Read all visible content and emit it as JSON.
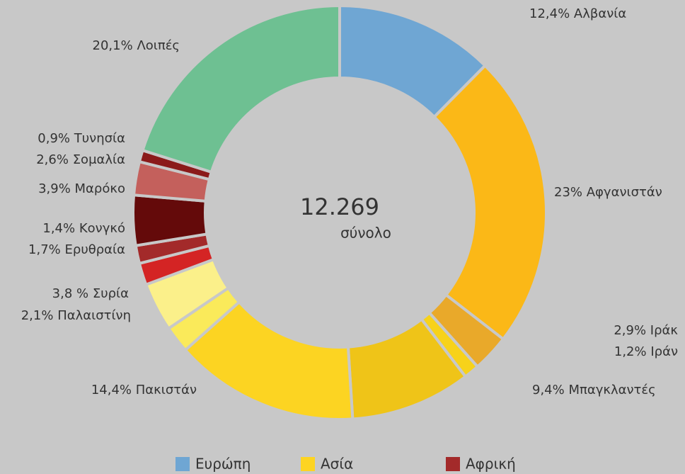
{
  "chart_data": {
    "type": "donut",
    "center_value": "12.269",
    "center_label": "σύνολο",
    "categories": [
      "Αλβανία",
      "Αφγανιστάν",
      "Ιράκ",
      "Ιράν",
      "Μπαγκλαντές",
      "Πακιστάν",
      "Παλαιστίνη",
      "Συρία",
      "Ερυθραία",
      "Κονγκό",
      "Μαρόκο",
      "Σομαλία",
      "Τυνησία",
      "Λοιπές"
    ],
    "values": [
      12.4,
      23,
      2.9,
      1.2,
      9.4,
      14.4,
      2.1,
      3.8,
      1.7,
      1.4,
      3.9,
      2.6,
      0.9,
      20.1
    ],
    "value_labels": [
      "12,4%",
      "23% ",
      "2,9%",
      "1,2%",
      "9,4%",
      "14,4%",
      "2,1%",
      "3,8 %",
      "1,7%",
      "1,4%",
      "3,9%",
      "2,6%",
      "0,9%",
      "20,1%"
    ],
    "colors": [
      "#6fa6d3",
      "#fbb817",
      "#e9a92a",
      "#f7d21a",
      "#efc418",
      "#fcd422",
      "#faea5a",
      "#fbf08a",
      "#d42424",
      "#a32a2a",
      "#640a0a",
      "#c4605c",
      "#8b1a1a",
      "#6ec092"
    ],
    "legend": [
      {
        "name": "Ευρώπη",
        "color": "#6fa6d3"
      },
      {
        "name": "Ασία",
        "color": "#fdd422"
      },
      {
        "name": "Αφρική",
        "color": "#a32a2a"
      }
    ]
  }
}
